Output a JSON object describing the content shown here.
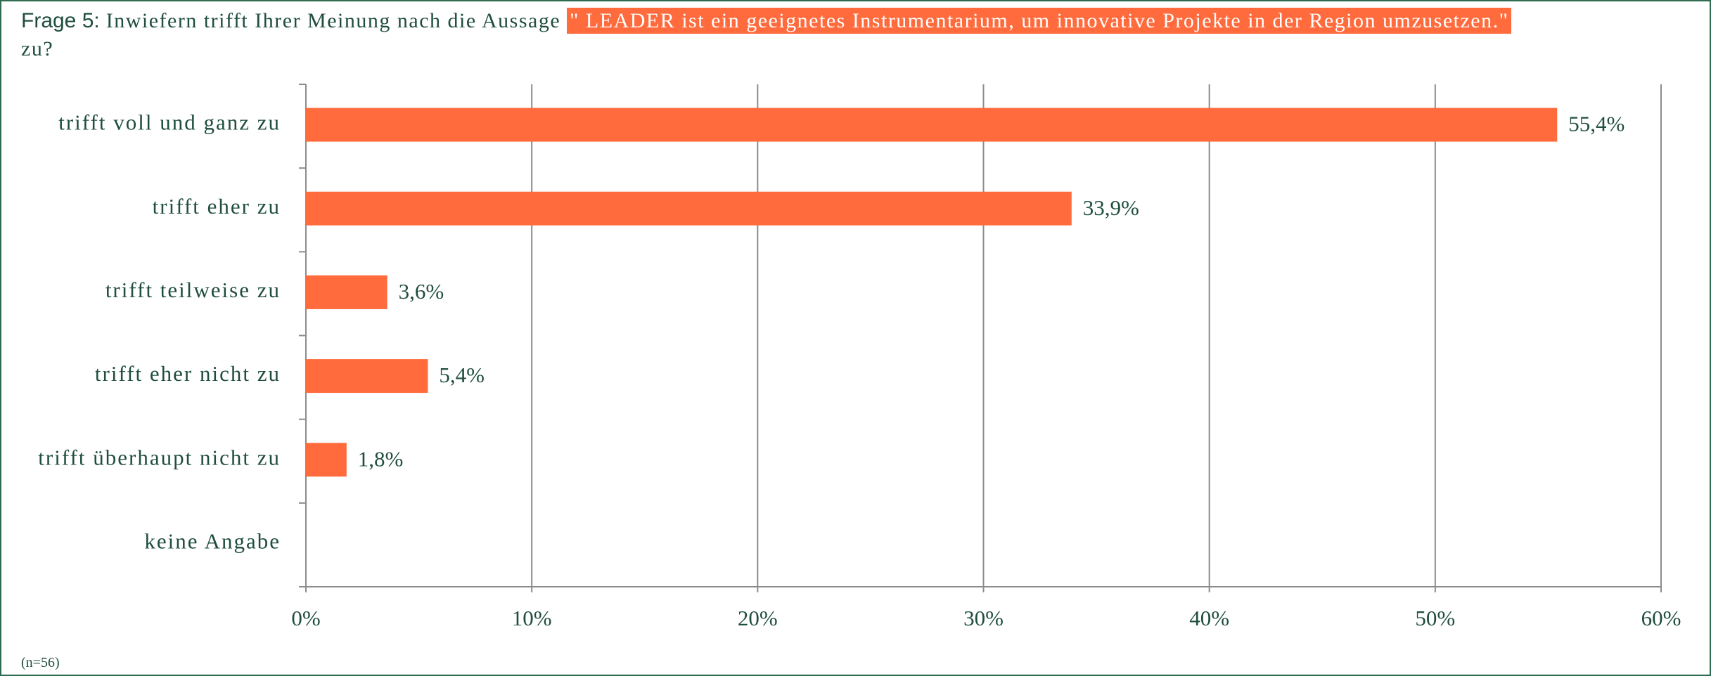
{
  "chart_data": {
    "type": "barh",
    "title": {
      "prefix": "Frage 5:",
      "text": "Inwiefern trifft Ihrer Meinung nach die Aussage",
      "highlight": "\" LEADER ist ein geeignetes Instrumentarium, um innovative Projekte in der Region umzusetzen.\"",
      "suffix": "zu?"
    },
    "categories": [
      "trifft voll und ganz zu",
      "trifft eher zu",
      "trifft teilweise zu",
      "trifft eher nicht zu",
      "trifft überhaupt nicht zu",
      "keine Angabe"
    ],
    "values": [
      55.4,
      33.9,
      3.6,
      5.4,
      1.8,
      null
    ],
    "value_labels": [
      "55,4%",
      "33,9%",
      "3,6%",
      "5,4%",
      "1,8%",
      null
    ],
    "color": "#ff6b3d",
    "xlim": [
      0,
      60
    ],
    "xticks": [
      {
        "value": 0,
        "label": "0%"
      },
      {
        "value": 10,
        "label": "10%"
      },
      {
        "value": 20,
        "label": "20%"
      },
      {
        "value": 30,
        "label": "30%"
      },
      {
        "value": 40,
        "label": "40%"
      },
      {
        "value": 50,
        "label": "50%"
      },
      {
        "value": 60,
        "label": "60%"
      }
    ],
    "grid": true,
    "note": "(n=56)"
  }
}
